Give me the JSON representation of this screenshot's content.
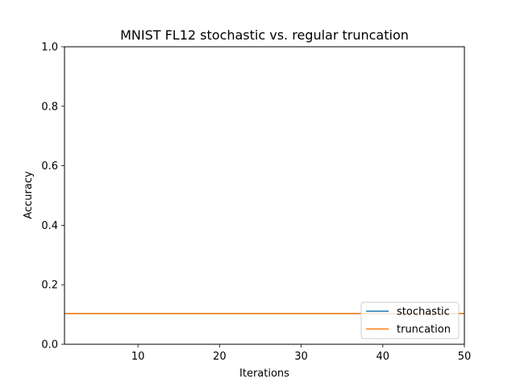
{
  "chart_data": {
    "type": "line",
    "title": "MNIST FL12 stochastic vs. regular truncation",
    "xlabel": "Iterations",
    "ylabel": "Accuracy",
    "xlim": [
      1,
      50
    ],
    "ylim": [
      0,
      1
    ],
    "xticks": [
      10,
      20,
      30,
      40,
      50
    ],
    "xtick_labels": [
      "10",
      "20",
      "30",
      "40",
      "50"
    ],
    "yticks": [
      0,
      0.2,
      0.4,
      0.6,
      0.8,
      1.0
    ],
    "ytick_labels": [
      "0.0",
      "0.2",
      "0.4",
      "0.6",
      "0.8",
      "1.0"
    ],
    "grid": false,
    "legend_position": "bottom-right",
    "series": [
      {
        "name": "stochastic",
        "color": "#1f77b4",
        "x": [
          1,
          50
        ],
        "y": [
          0.1032,
          0.1032
        ]
      },
      {
        "name": "truncation",
        "color": "#ff7f0e",
        "x": [
          1,
          50
        ],
        "y": [
          0.1032,
          0.1032
        ]
      }
    ]
  }
}
